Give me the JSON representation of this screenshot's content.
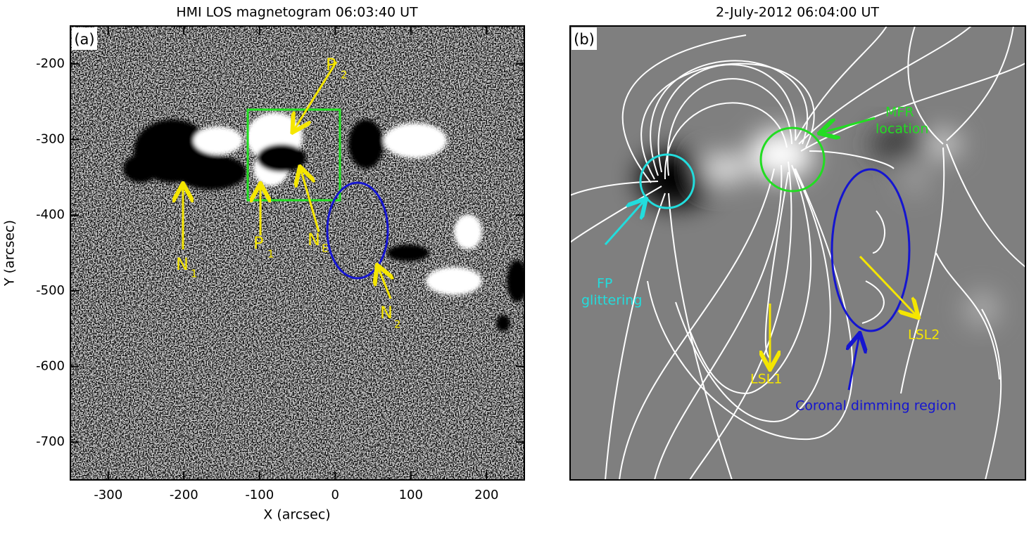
{
  "panels": [
    {
      "title": "HMI LOS magnetogram 06:03:40 UT",
      "label": "(a)",
      "xlabel": "X (arcsec)",
      "ylabel": "Y (arcsec)",
      "xlim": [
        -350,
        250
      ],
      "ylim": [
        -750,
        -150
      ],
      "xticks": [
        -300,
        -200,
        -100,
        0,
        100,
        200
      ],
      "yticks": [
        -700,
        -600,
        -500,
        -400,
        -300,
        -200
      ],
      "annotations": [
        {
          "text": "P",
          "sub": "2"
        },
        {
          "text": "N",
          "sub": "1"
        },
        {
          "text": "P",
          "sub": "1"
        },
        {
          "text": "N",
          "sub": "E"
        },
        {
          "text": "N",
          "sub": "2"
        }
      ]
    },
    {
      "title": "2-July-2012 06:04:00 UT",
      "label": "(b)",
      "annotations": [
        {
          "lines": [
            "MFR",
            "location"
          ]
        },
        {
          "lines": [
            "FP",
            "glittering"
          ]
        },
        {
          "lines": [
            "LSL1"
          ]
        },
        {
          "lines": [
            "LSL2"
          ]
        },
        {
          "lines": [
            "Coronal dimming region"
          ]
        }
      ]
    }
  ]
}
